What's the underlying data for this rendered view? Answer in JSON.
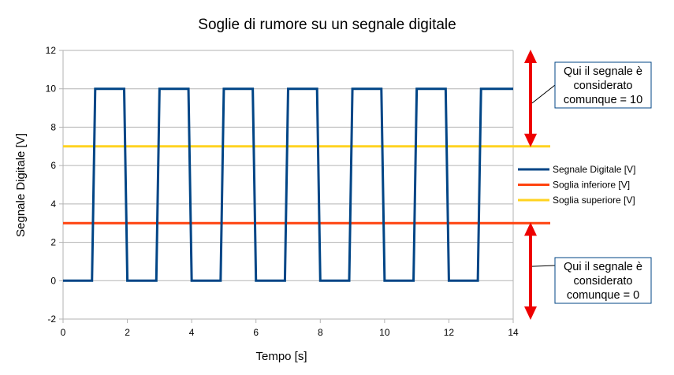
{
  "chart_data": {
    "type": "line",
    "title": "Soglie di rumore su un segnale digitale",
    "xlabel": "Tempo [s]",
    "ylabel": "Segnale Digitale [V]",
    "xlim": [
      0,
      14
    ],
    "ylim": [
      -2,
      12
    ],
    "xticks": [
      0,
      2,
      4,
      6,
      8,
      10,
      12,
      14
    ],
    "yticks": [
      -2,
      0,
      2,
      4,
      6,
      8,
      10,
      12
    ],
    "grid": "horizontal",
    "legend_position": "right",
    "series": [
      {
        "name": "Segnale Digitale [V]",
        "color": "#004586",
        "x": [
          0,
          0.9,
          1,
          1.9,
          2,
          2.9,
          3,
          3.9,
          4,
          4.9,
          5,
          5.9,
          6,
          6.9,
          7,
          7.9,
          8,
          8.9,
          9,
          9.9,
          10,
          10.9,
          11,
          11.9,
          12,
          12.9,
          13,
          14
        ],
        "y": [
          0,
          0,
          10,
          10,
          0,
          0,
          10,
          10,
          0,
          0,
          10,
          10,
          0,
          0,
          10,
          10,
          0,
          0,
          10,
          10,
          0,
          0,
          10,
          10,
          0,
          0,
          10,
          10
        ]
      },
      {
        "name": "Soglia inferiore [V]",
        "color": "#ff420e",
        "x": [
          0,
          14
        ],
        "y": [
          3,
          3
        ]
      },
      {
        "name": "Soglia superiore [V]",
        "color": "#ffd320",
        "x": [
          0,
          14
        ],
        "y": [
          7,
          7
        ]
      }
    ],
    "annotations": [
      {
        "lines": [
          "Qui il segnale è",
          "considerato",
          "comunque = 10"
        ],
        "y_range": [
          7,
          12
        ]
      },
      {
        "lines": [
          "Qui il segnale è",
          "considerato",
          "comunque = 0"
        ],
        "y_range": [
          -2,
          3
        ]
      }
    ],
    "annotation_arrow_color": "#ee0000",
    "annotation_box_border": "#004586"
  }
}
